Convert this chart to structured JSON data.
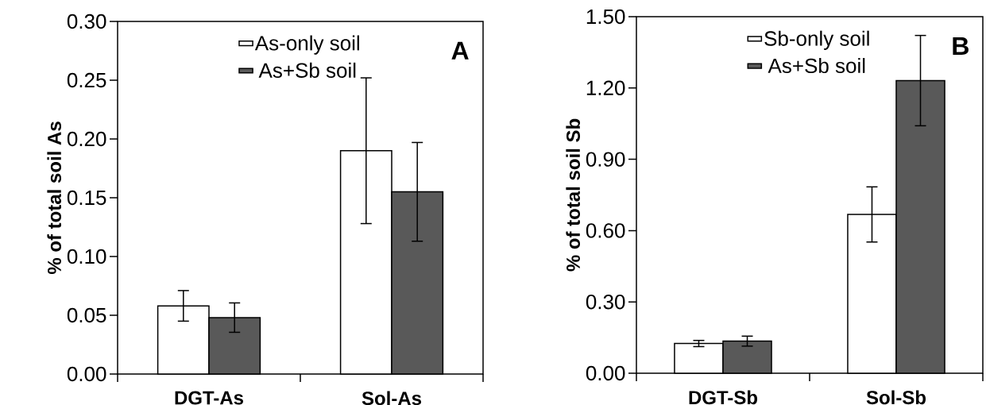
{
  "chart_data": [
    {
      "type": "bar",
      "categories": [
        "DGT-As",
        "Sol-As"
      ],
      "ylabel": "% of total soil As",
      "ylim": [
        0,
        0.3
      ],
      "yticks": [
        {
          "value": 0,
          "label": "0.00"
        },
        {
          "value": 0.05,
          "label": "0.05"
        },
        {
          "value": 0.1,
          "label": "0.10"
        },
        {
          "value": 0.15,
          "label": "0.15"
        },
        {
          "value": 0.2,
          "label": "0.20"
        },
        {
          "value": 0.25,
          "label": "0.25"
        },
        {
          "value": 0.3,
          "label": "0.30"
        }
      ],
      "series": [
        {
          "name": "As-only soil",
          "color": "#ffffff",
          "values": [
            0.058,
            0.19
          ],
          "errors": [
            0.013,
            0.062
          ]
        },
        {
          "name": "As+Sb soil",
          "color": "#595959",
          "values": [
            0.048,
            0.155
          ],
          "errors": [
            0.0125,
            0.042
          ]
        }
      ],
      "legend": "top",
      "annotations": [
        "A"
      ]
    },
    {
      "type": "bar",
      "categories": [
        "DGT-Sb",
        "Sol-Sb"
      ],
      "ylabel": "% of total soil Sb",
      "ylim": [
        0,
        1.5
      ],
      "yticks": [
        {
          "value": 0,
          "label": "0.00"
        },
        {
          "value": 0.3,
          "label": "0.30"
        },
        {
          "value": 0.6,
          "label": "0.60"
        },
        {
          "value": 0.9,
          "label": "0.90"
        },
        {
          "value": 1.2,
          "label": "1.20"
        },
        {
          "value": 1.5,
          "label": "1.50"
        }
      ],
      "series": [
        {
          "name": "Sb-only soil",
          "color": "#ffffff",
          "values": [
            0.125,
            0.668
          ],
          "errors": [
            0.013,
            0.116
          ]
        },
        {
          "name": "As+Sb soil",
          "color": "#595959",
          "values": [
            0.135,
            1.231
          ],
          "errors": [
            0.021,
            0.19
          ]
        }
      ],
      "legend": "top",
      "annotations": [
        "B"
      ]
    }
  ]
}
